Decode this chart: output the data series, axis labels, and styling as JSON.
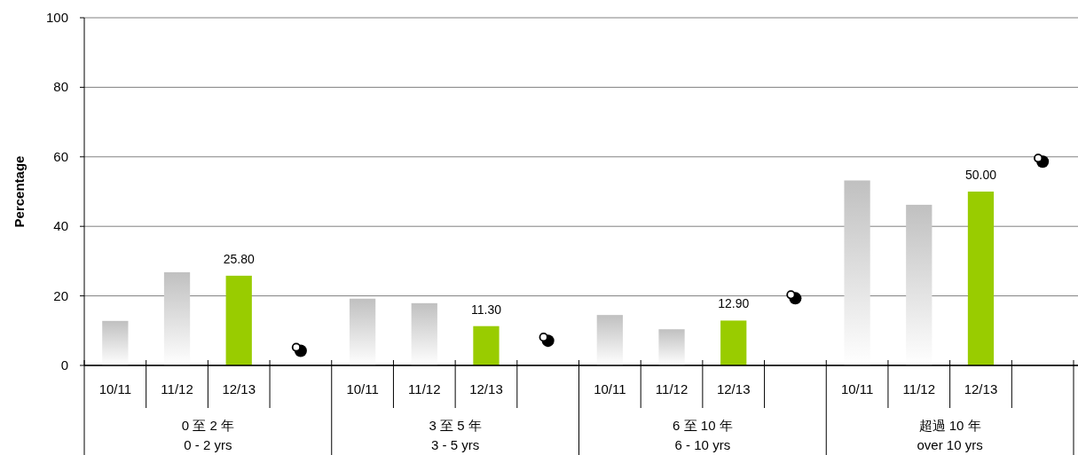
{
  "chart_data": {
    "type": "bar",
    "ylabel": "Percentage",
    "ylim": [
      0,
      100
    ],
    "yticks": [
      0,
      20,
      40,
      60,
      80,
      100
    ],
    "grid": "y",
    "categories": [
      "10/11",
      "11/12",
      "12/13",
      null,
      "10/11",
      "11/12",
      "12/13",
      null,
      "10/11",
      "11/12",
      "12/13",
      null,
      "10/11",
      "11/12",
      "12/13",
      null
    ],
    "series": [
      {
        "values": [
          12.8,
          26.8,
          25.8,
          null,
          19.2,
          17.9,
          11.3,
          null,
          14.5,
          10.4,
          12.9,
          null,
          53.2,
          46.2,
          50.0,
          null
        ],
        "colors": [
          "#c0c0c0",
          "#c0c0c0",
          "#99cc00",
          null,
          "#c0c0c0",
          "#c0c0c0",
          "#99cc00",
          null,
          "#c0c0c0",
          "#c0c0c0",
          "#99cc00",
          null,
          "#c0c0c0",
          "#c0c0c0",
          "#99cc00",
          null
        ],
        "value_labels": [
          null,
          null,
          "25.80",
          null,
          null,
          null,
          "11.30",
          null,
          null,
          null,
          "12.90",
          null,
          null,
          null,
          "50.00",
          null
        ]
      },
      {
        "type": "scatter",
        "color": "#000000",
        "marker": "circle",
        "values": [
          null,
          null,
          null,
          4.2,
          null,
          null,
          null,
          7.1,
          null,
          null,
          null,
          19.3,
          null,
          null,
          null,
          58.6
        ]
      }
    ],
    "annotations": [
      "0 至 2 年\n0 - 2 yrs",
      "3 至 5 年\n3 - 5 yrs",
      "6 至 10 年\n6 - 10 yrs",
      "超過 10 年\nover 10 yrs"
    ]
  }
}
